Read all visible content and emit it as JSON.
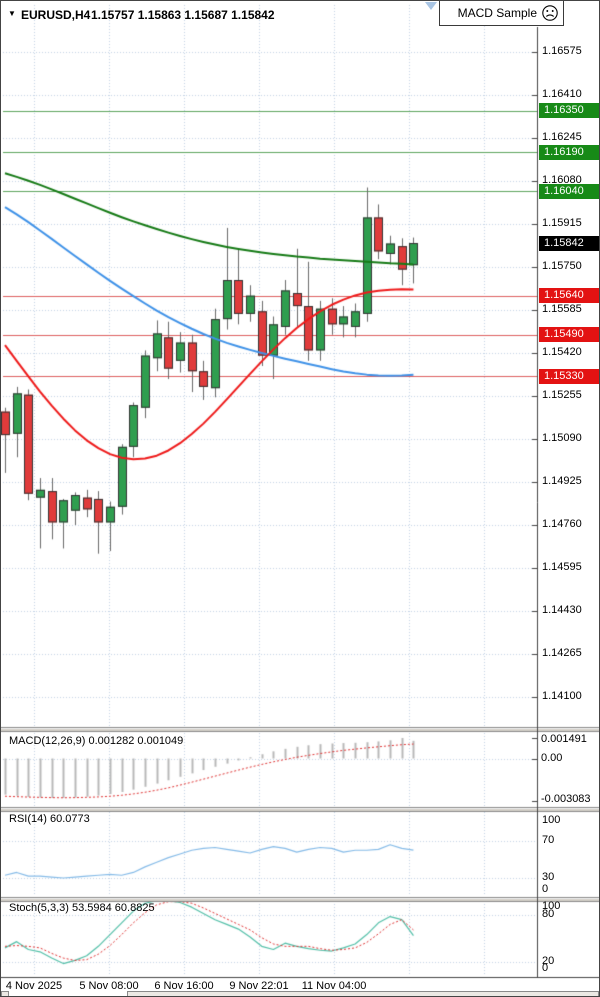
{
  "header": {
    "dropdown_glyph": "▼",
    "symbol": "EURUSD,H4",
    "ohlc": "1.15757 1.15863 1.15687 1.15842",
    "indicator_name": "MACD Sample"
  },
  "price_axis": {
    "ticks": [
      "1.16575",
      "1.16410",
      "1.16245",
      "1.16080",
      "1.15915",
      "1.15750",
      "1.15585",
      "1.15420",
      "1.15255",
      "1.15090",
      "1.14925",
      "1.14760",
      "1.14595",
      "1.14430",
      "1.14265",
      "1.14100"
    ],
    "green_badges": [
      "1.16350",
      "1.16190",
      "1.16040"
    ],
    "red_badges": [
      "1.15640",
      "1.15490",
      "1.15330"
    ],
    "current_badge": "1.15842"
  },
  "time_axis": {
    "labels": [
      "4 Nov 2025",
      "5 Nov 08:00",
      "6 Nov 16:00",
      "9 Nov 22:01",
      "11 Nov 04:00"
    ]
  },
  "panels": {
    "macd": {
      "label": "MACD(12,26,9) 0.001282 0.001049",
      "axis": [
        "0.001491",
        "0.00",
        "-0.003083"
      ]
    },
    "rsi": {
      "label": "RSI(14) 60.0773",
      "axis": [
        "100",
        "70",
        "30",
        "0"
      ]
    },
    "stoch": {
      "label": "Stoch(5,3,3) 53.5984 60.8825",
      "axis": [
        "100",
        "80",
        "20",
        "0"
      ]
    }
  },
  "colors": {
    "grid": "#c3d3e6",
    "candle_up": "#2f9e4f",
    "candle_down": "#e03b3b",
    "candle_border": "#333333",
    "wick": "#6a6a6a",
    "ma_green": "#157a15",
    "ma_blue": "#3f92e8",
    "ma_red": "#ef1a1a",
    "level_green_line": "#5ea55e",
    "level_red_line": "#de5f5f",
    "badge_green": "#178a17",
    "badge_red": "#e31212",
    "badge_black": "#000000",
    "macd_histogram": "#b9b9b9",
    "macd_signal": "#e03333",
    "rsi_line": "#85bbe8",
    "stoch_k": "#54c0a9",
    "stoch_d": "#e03333"
  },
  "chart_data": {
    "type": "candlestick",
    "symbol": "EURUSD",
    "timeframe": "H4",
    "current_bar": {
      "open": 1.15757,
      "high": 1.15863,
      "low": 1.15687,
      "close": 1.15842
    },
    "y_axis_range": [
      1.141,
      1.16575
    ],
    "x_labels": [
      "4 Nov 2025",
      "5 Nov 08:00",
      "6 Nov 16:00",
      "9 Nov 22:01",
      "11 Nov 04:00"
    ],
    "levels": {
      "resistance": [
        1.1635,
        1.1619,
        1.1604
      ],
      "support": [
        1.1564,
        1.1549,
        1.1533
      ],
      "current_price": 1.15842
    },
    "candles_ohlc": [
      [
        1.15195,
        1.1521,
        1.1496,
        1.15105
      ],
      [
        1.1511,
        1.1529,
        1.1502,
        1.15265
      ],
      [
        1.1526,
        1.1528,
        1.14855,
        1.1488
      ],
      [
        1.14865,
        1.1494,
        1.1467,
        1.14895
      ],
      [
        1.1489,
        1.1494,
        1.14705,
        1.1477
      ],
      [
        1.1477,
        1.1486,
        1.1467,
        1.14855
      ],
      [
        1.14815,
        1.14885,
        1.1476,
        1.14875
      ],
      [
        1.14865,
        1.14895,
        1.1479,
        1.1482
      ],
      [
        1.1486,
        1.1489,
        1.1465,
        1.1477
      ],
      [
        1.1477,
        1.1485,
        1.1466,
        1.1483
      ],
      [
        1.1483,
        1.1507,
        1.148,
        1.1506
      ],
      [
        1.1506,
        1.1523,
        1.1502,
        1.1522
      ],
      [
        1.1521,
        1.1543,
        1.1517,
        1.1541
      ],
      [
        1.154,
        1.15545,
        1.1535,
        1.15495
      ],
      [
        1.1548,
        1.1554,
        1.1532,
        1.1536
      ],
      [
        1.1539,
        1.155,
        1.15345,
        1.1546
      ],
      [
        1.1546,
        1.1549,
        1.1527,
        1.1535
      ],
      [
        1.1535,
        1.1539,
        1.1524,
        1.1529
      ],
      [
        1.15285,
        1.1559,
        1.1525,
        1.1555
      ],
      [
        1.1555,
        1.159,
        1.1551,
        1.157
      ],
      [
        1.157,
        1.1582,
        1.1553,
        1.1557
      ],
      [
        1.1557,
        1.1568,
        1.1554,
        1.1564
      ],
      [
        1.1558,
        1.1562,
        1.1537,
        1.1541
      ],
      [
        1.1541,
        1.1556,
        1.1532,
        1.1553
      ],
      [
        1.1552,
        1.157,
        1.1549,
        1.1566
      ],
      [
        1.1565,
        1.1582,
        1.1552,
        1.156
      ],
      [
        1.156,
        1.1577,
        1.1539,
        1.1543
      ],
      [
        1.1543,
        1.1562,
        1.1539,
        1.1559
      ],
      [
        1.1559,
        1.1563,
        1.1549,
        1.1553
      ],
      [
        1.1553,
        1.156,
        1.1548,
        1.1556
      ],
      [
        1.1552,
        1.1561,
        1.1548,
        1.1558
      ],
      [
        1.1557,
        1.16055,
        1.1554,
        1.1594
      ],
      [
        1.1594,
        1.1599,
        1.1578,
        1.1581
      ],
      [
        1.158,
        1.1587,
        1.1576,
        1.1584
      ],
      [
        1.1583,
        1.1586,
        1.1568,
        1.1574
      ],
      [
        1.15757,
        1.15863,
        1.15687,
        1.15842
      ]
    ],
    "ma_green": [
      1.1611,
      1.16096,
      1.16081,
      1.16065,
      1.16048,
      1.1603,
      1.16012,
      1.15994,
      1.15976,
      1.15958,
      1.15941,
      1.15925,
      1.1591,
      1.15896,
      1.15882,
      1.15869,
      1.15857,
      1.15846,
      1.15836,
      1.15827,
      1.15819,
      1.15812,
      1.15806,
      1.158,
      1.15795,
      1.1579,
      1.15786,
      1.15782,
      1.15779,
      1.15776,
      1.15773,
      1.1577,
      1.15767,
      1.15764,
      1.15762,
      1.1576
    ],
    "ma_blue": [
      1.1598,
      1.15952,
      1.15922,
      1.1589,
      1.15858,
      1.15825,
      1.15792,
      1.1576,
      1.15728,
      1.15697,
      1.15667,
      1.15638,
      1.1561,
      1.15583,
      1.15558,
      1.15535,
      1.15513,
      1.15493,
      1.15475,
      1.15459,
      1.15445,
      1.15432,
      1.1542,
      1.15409,
      1.15398,
      1.15388,
      1.15378,
      1.15368,
      1.15358,
      1.15349,
      1.15342,
      1.15337,
      1.15334,
      1.15333,
      1.15334,
      1.15337
    ],
    "ma_red": [
      1.1545,
      1.1539,
      1.1533,
      1.15272,
      1.15218,
      1.15168,
      1.15123,
      1.15085,
      1.15055,
      1.15032,
      1.15018,
      1.15012,
      1.15015,
      1.15026,
      1.15046,
      1.15074,
      1.15109,
      1.15149,
      1.15194,
      1.15242,
      1.15291,
      1.1534,
      1.15388,
      1.15434,
      1.15477,
      1.15516,
      1.1555,
      1.1558,
      1.15605,
      1.15625,
      1.15641,
      1.15652,
      1.15659,
      1.15663,
      1.15665,
      1.15664
    ],
    "macd": {
      "params": "12,26,9",
      "macd_value": 0.001282,
      "signal_value": 0.001049,
      "scale_max": 0.001491,
      "scale_min": -0.003083,
      "histogram": [
        -0.00262,
        -0.00271,
        -0.00279,
        -0.00284,
        -0.00287,
        -0.00286,
        -0.00283,
        -0.00277,
        -0.00269,
        -0.00258,
        -0.00243,
        -0.00226,
        -0.00205,
        -0.00182,
        -0.00158,
        -0.00133,
        -0.00108,
        -0.00084,
        -0.0006,
        -0.00037,
        -0.00014,
        9e-05,
        0.00031,
        0.00052,
        0.0007,
        0.00085,
        0.00096,
        0.00104,
        0.00109,
        0.00112,
        0.00114,
        0.00118,
        0.00124,
        0.00132,
        0.00149,
        0.001282
      ],
      "signal": [
        -0.00274,
        -0.00277,
        -0.0028,
        -0.00282,
        -0.00284,
        -0.00285,
        -0.00284,
        -0.00282,
        -0.00279,
        -0.00274,
        -0.00267,
        -0.00257,
        -0.00245,
        -0.0023,
        -0.00213,
        -0.00193,
        -0.00172,
        -0.0015,
        -0.00128,
        -0.00106,
        -0.00084,
        -0.00063,
        -0.00043,
        -0.00024,
        -7e-05,
        9e-05,
        0.00023,
        0.00036,
        0.00048,
        0.00059,
        0.00068,
        0.00077,
        0.00085,
        0.00093,
        0.001,
        0.001049
      ]
    },
    "rsi": {
      "period": 14,
      "value": 60.0773,
      "overbought": 70,
      "oversold": 30,
      "series": [
        33,
        36,
        32,
        32,
        31,
        30,
        31,
        32,
        33,
        34,
        33,
        36,
        42,
        47,
        52,
        56,
        60,
        62,
        63,
        61,
        59,
        57,
        61,
        64,
        62,
        58,
        61,
        63,
        62,
        58,
        60,
        60,
        61,
        66,
        62,
        60.1
      ]
    },
    "stoch": {
      "params": "5,3,3",
      "k_value": 53.5984,
      "d_value": 60.8825,
      "upper": 80,
      "lower": 20,
      "k": [
        38,
        46,
        36,
        33,
        25,
        18,
        22,
        28,
        40,
        55,
        70,
        85,
        95,
        98,
        98,
        96,
        90,
        82,
        74,
        68,
        62,
        52,
        40,
        36,
        44,
        40,
        37,
        35,
        34,
        38,
        43,
        55,
        70,
        78,
        74,
        53.6
      ],
      "d": [
        40,
        41,
        40,
        38,
        31,
        25,
        22,
        23,
        30,
        41,
        55,
        70,
        83,
        93,
        97,
        97,
        95,
        89,
        82,
        75,
        68,
        61,
        51,
        43,
        40,
        40,
        40,
        37,
        35,
        36,
        38,
        45,
        56,
        68,
        74,
        60.9
      ]
    }
  }
}
